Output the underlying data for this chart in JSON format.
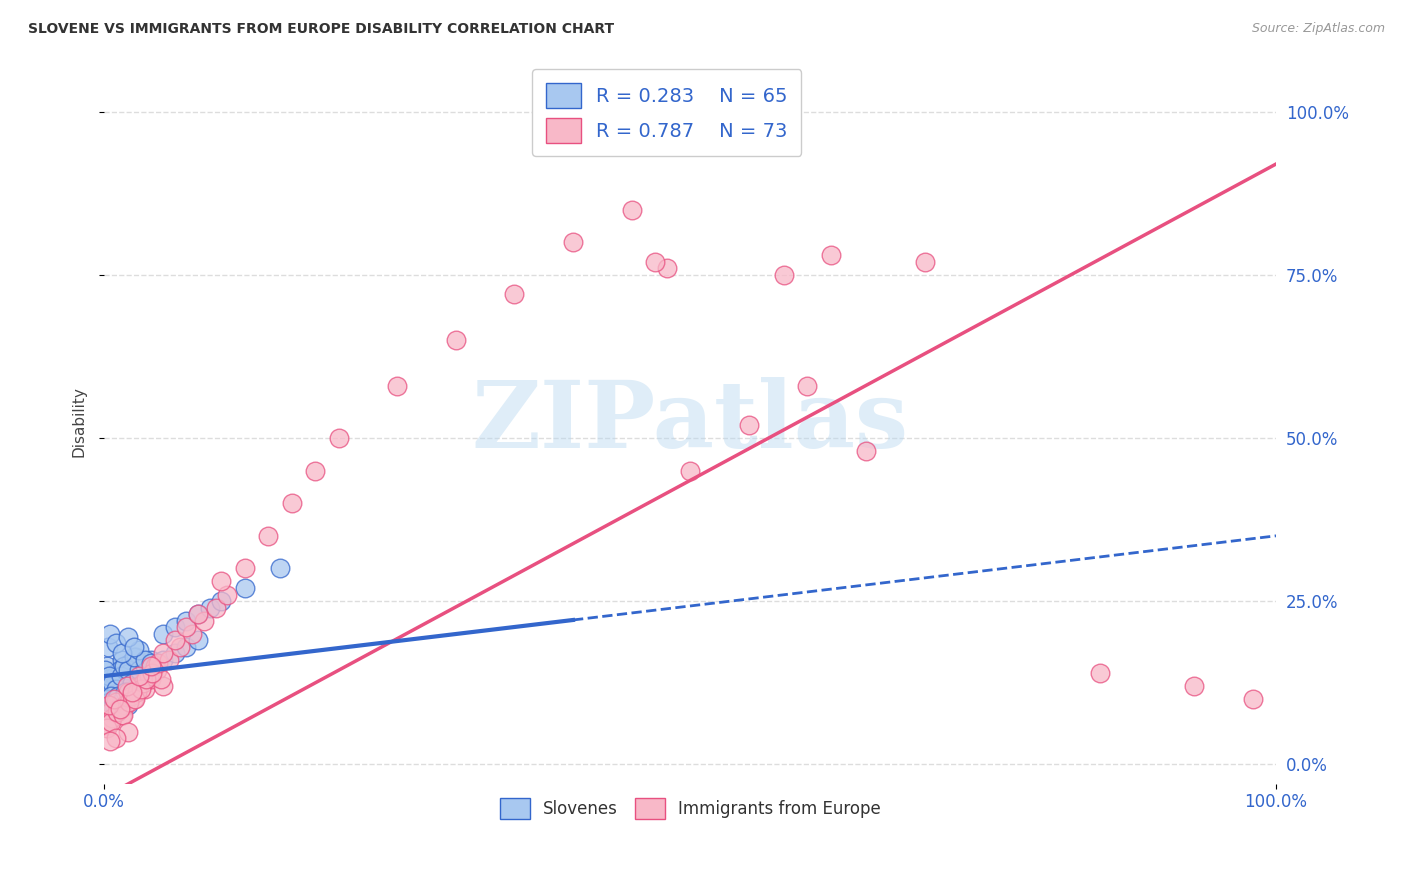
{
  "title": "SLOVENE VS IMMIGRANTS FROM EUROPE DISABILITY CORRELATION CHART",
  "source": "Source: ZipAtlas.com",
  "ylabel": "Disability",
  "blue_label": "Slovenes",
  "pink_label": "Immigrants from Europe",
  "blue_R": 0.283,
  "blue_N": 65,
  "pink_R": 0.787,
  "pink_N": 73,
  "blue_color": "#A8C8F0",
  "pink_color": "#F8B8C8",
  "blue_line_color": "#3366CC",
  "pink_line_color": "#E85080",
  "watermark_text": "ZIPatlas",
  "blue_scatter_x": [
    0.2,
    0.5,
    0.8,
    1.0,
    1.2,
    1.5,
    1.8,
    2.0,
    2.2,
    2.5,
    0.3,
    0.6,
    0.9,
    1.1,
    1.3,
    1.6,
    1.9,
    2.1,
    2.3,
    2.6,
    0.1,
    0.4,
    0.7,
    1.0,
    1.4,
    1.7,
    2.0,
    2.4,
    2.7,
    3.0,
    3.5,
    4.0,
    4.5,
    5.0,
    6.0,
    7.0,
    8.0,
    0.2,
    0.4,
    0.6,
    0.8,
    1.0,
    1.2,
    1.4,
    1.6,
    1.8,
    2.0,
    0.3,
    2.5,
    3.0,
    3.5,
    4.0,
    0.5,
    1.0,
    1.5,
    2.0,
    2.5,
    5.0,
    6.0,
    7.0,
    8.0,
    9.0,
    10.0,
    12.0,
    15.0
  ],
  "blue_scatter_y": [
    15.0,
    13.0,
    12.0,
    14.0,
    13.5,
    16.0,
    14.0,
    13.5,
    15.5,
    14.5,
    13.0,
    11.5,
    13.5,
    12.0,
    14.5,
    12.5,
    11.5,
    14.0,
    13.0,
    12.5,
    14.5,
    13.5,
    12.5,
    11.5,
    13.5,
    15.0,
    14.5,
    12.5,
    16.5,
    14.5,
    15.0,
    16.0,
    15.5,
    16.0,
    17.0,
    18.0,
    19.0,
    10.0,
    9.5,
    10.5,
    9.0,
    10.0,
    10.5,
    9.5,
    10.0,
    11.0,
    9.0,
    18.0,
    16.5,
    17.5,
    16.0,
    15.5,
    20.0,
    18.5,
    17.0,
    19.5,
    18.0,
    20.0,
    21.0,
    22.0,
    23.0,
    24.0,
    25.0,
    27.0,
    30.0
  ],
  "pink_scatter_x": [
    0.5,
    1.0,
    1.5,
    2.0,
    2.5,
    3.0,
    3.5,
    4.0,
    4.5,
    5.0,
    0.3,
    0.7,
    1.2,
    1.8,
    2.3,
    2.8,
    3.3,
    3.8,
    4.3,
    4.8,
    0.2,
    0.6,
    1.1,
    1.6,
    2.1,
    2.6,
    3.1,
    3.6,
    4.1,
    4.6,
    5.5,
    6.5,
    7.5,
    8.5,
    9.5,
    10.5,
    12.0,
    14.0,
    16.0,
    18.0,
    20.0,
    25.0,
    30.0,
    35.0,
    40.0,
    45.0,
    50.0,
    55.0,
    60.0,
    65.0,
    0.4,
    0.8,
    1.3,
    1.9,
    2.4,
    5.0,
    6.0,
    7.0,
    3.0,
    2.0,
    1.0,
    0.5,
    10.0,
    8.0,
    4.0,
    62.0,
    58.0,
    70.0,
    48.0,
    47.0,
    85.0,
    93.0,
    98.0
  ],
  "pink_scatter_y": [
    8.0,
    9.5,
    7.5,
    11.0,
    10.0,
    12.0,
    11.5,
    13.0,
    14.5,
    12.0,
    6.0,
    7.0,
    8.5,
    9.0,
    10.5,
    11.0,
    12.5,
    13.5,
    15.0,
    13.0,
    5.5,
    6.5,
    8.0,
    7.5,
    9.5,
    10.0,
    11.5,
    13.0,
    14.0,
    15.5,
    16.0,
    18.0,
    20.0,
    22.0,
    24.0,
    26.0,
    30.0,
    35.0,
    40.0,
    45.0,
    50.0,
    58.0,
    65.0,
    72.0,
    80.0,
    85.0,
    45.0,
    52.0,
    58.0,
    48.0,
    9.0,
    10.0,
    8.5,
    12.0,
    11.0,
    17.0,
    19.0,
    21.0,
    13.5,
    5.0,
    4.0,
    3.5,
    28.0,
    23.0,
    15.0,
    78.0,
    75.0,
    77.0,
    76.0,
    77.0,
    14.0,
    12.0,
    10.0
  ],
  "blue_line_x0": 0,
  "blue_line_y0": 13.5,
  "blue_line_x1": 100,
  "blue_line_y1": 35.0,
  "blue_solid_end": 40,
  "pink_line_x0": 0,
  "pink_line_y0": -5.0,
  "pink_line_x1": 100,
  "pink_line_y1": 92.0,
  "xlim": [
    0,
    100
  ],
  "ylim": [
    -3,
    108
  ],
  "yticks": [
    0,
    25,
    50,
    75,
    100
  ],
  "ytick_labels": [
    "0.0%",
    "25.0%",
    "50.0%",
    "75.0%",
    "100.0%"
  ],
  "xtick_labels_show": [
    "0.0%",
    "100.0%"
  ],
  "background_color": "#FFFFFF",
  "grid_color": "#DDDDDD",
  "title_fontsize": 10,
  "tick_color": "#3366CC"
}
